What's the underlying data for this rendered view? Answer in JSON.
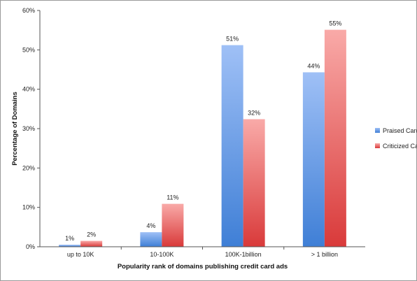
{
  "chart_data": {
    "type": "bar",
    "categories": [
      "up to 10K",
      "10-100K",
      "100K-1billion",
      "> 1 billion"
    ],
    "series": [
      {
        "name": "Praised Cards",
        "values": [
          0.5,
          3.7,
          51.2,
          44.3
        ],
        "labels": [
          "1%",
          "4%",
          "51%",
          "44%"
        ],
        "color_top": "#9fc0f6",
        "color_bottom": "#3f7fd6"
      },
      {
        "name": "Criticized Cards",
        "values": [
          1.5,
          10.9,
          32.4,
          55.1
        ],
        "labels": [
          "2%",
          "11%",
          "32%",
          "55%"
        ],
        "color_top": "#f9aaa8",
        "color_bottom": "#d93a3a"
      }
    ],
    "xlabel": "Popularity rank of domains publishing credit card ads",
    "ylabel": "Percentage of Domains",
    "ylim": [
      0,
      60
    ],
    "yticks": [
      0,
      10,
      20,
      30,
      40,
      50,
      60
    ],
    "ytick_labels": [
      "0%",
      "10%",
      "20%",
      "30%",
      "40%",
      "50%",
      "60%"
    ],
    "grid": false,
    "legend_position": "right"
  }
}
